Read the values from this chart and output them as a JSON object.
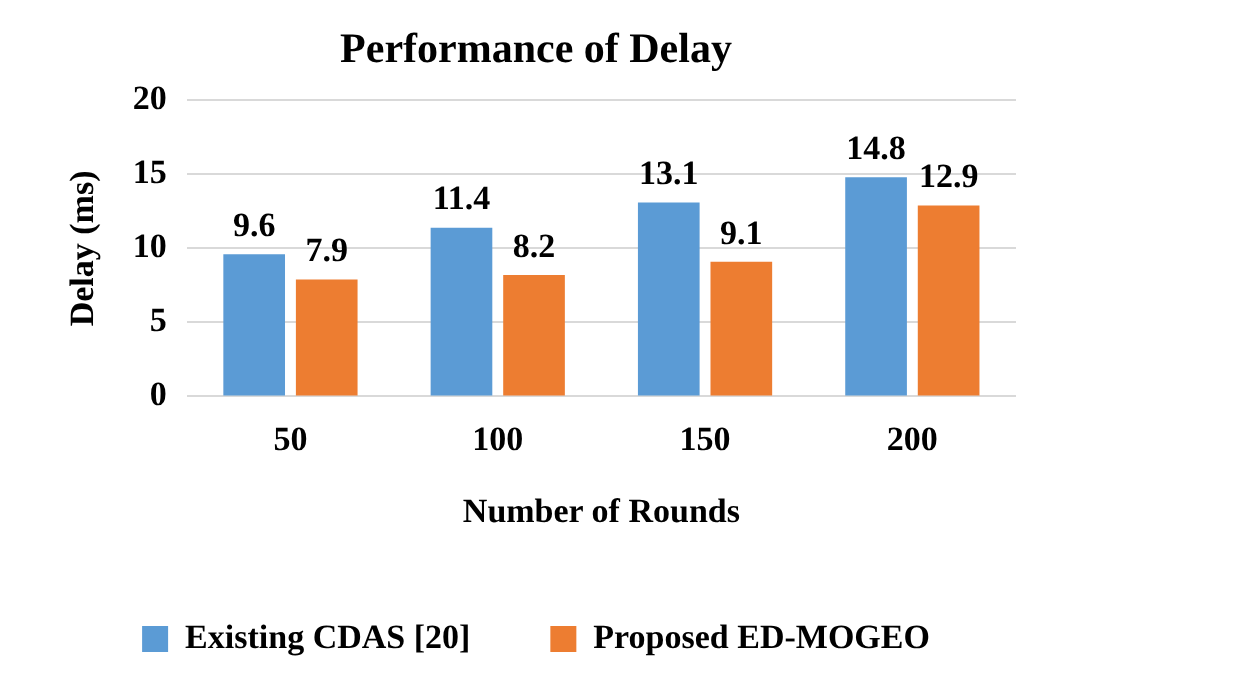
{
  "chart_data": {
    "type": "bar",
    "title": "Performance of Delay",
    "xlabel": "Number of Rounds",
    "ylabel": "Delay (ms)",
    "categories": [
      "50",
      "100",
      "150",
      "200"
    ],
    "series": [
      {
        "name": "Existing CDAS [20]",
        "color": "#5b9bd5",
        "values": [
          9.6,
          11.4,
          13.1,
          14.8
        ]
      },
      {
        "name": "Proposed ED-MOGEO",
        "color": "#ed7d31",
        "values": [
          7.9,
          8.2,
          9.1,
          12.9
        ]
      }
    ],
    "ylim": [
      0,
      20
    ],
    "yticks": [
      0,
      5,
      10,
      15,
      20
    ],
    "grid": "y",
    "legend": "bottom",
    "data_labels": true
  }
}
